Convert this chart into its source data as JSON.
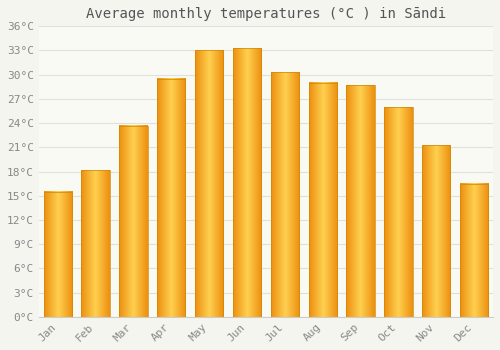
{
  "title": "Average monthly temperatures (°C ) in Sāndi",
  "months": [
    "Jan",
    "Feb",
    "Mar",
    "Apr",
    "May",
    "Jun",
    "Jul",
    "Aug",
    "Sep",
    "Oct",
    "Nov",
    "Dec"
  ],
  "values": [
    15.5,
    18.2,
    23.7,
    29.5,
    33.0,
    33.3,
    30.3,
    29.0,
    28.7,
    26.0,
    21.3,
    16.5
  ],
  "bar_color_top": "#FFC125",
  "bar_color_left": "#F5A623",
  "bar_edge_color": "#CC8800",
  "background_color": "#F5F5F0",
  "plot_bg_color": "#FAFAF5",
  "grid_color": "#E0E0E0",
  "text_color": "#888888",
  "title_color": "#555555",
  "ylim": [
    0,
    36
  ],
  "yticks": [
    0,
    3,
    6,
    9,
    12,
    15,
    18,
    21,
    24,
    27,
    30,
    33,
    36
  ],
  "title_fontsize": 10,
  "tick_fontsize": 8,
  "bar_width": 0.75
}
